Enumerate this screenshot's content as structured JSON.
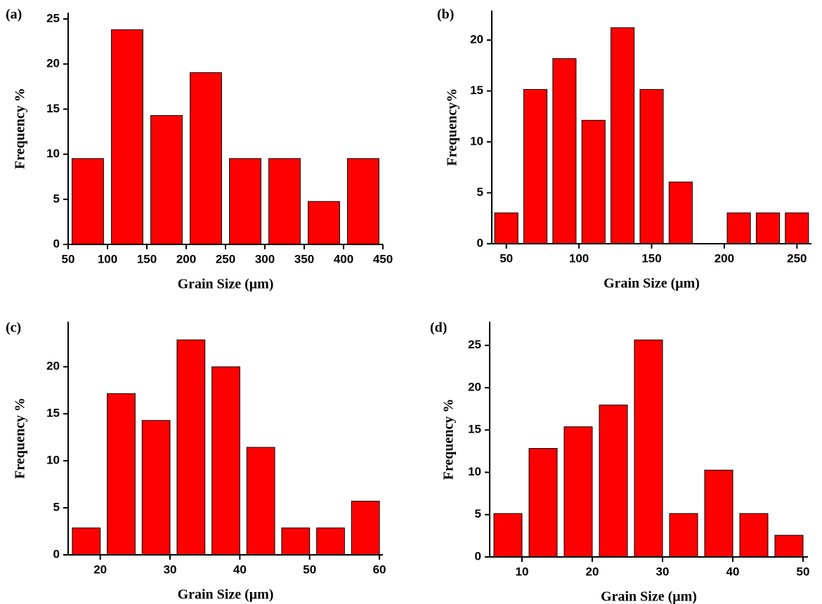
{
  "chart_data": [
    {
      "type": "histogram",
      "panel_label": "(a)",
      "x_label": "Grain Size (μm)",
      "y_label": "Frequency %",
      "bins": [
        50,
        100,
        150,
        200,
        250,
        300,
        350,
        400,
        450
      ],
      "values": [
        9.52,
        23.81,
        14.29,
        19.05,
        9.52,
        9.52,
        4.76,
        9.52
      ],
      "color": "#ff0000",
      "xlim": [
        50,
        450
      ],
      "xticks": [
        50,
        100,
        150,
        200,
        250,
        300,
        350,
        400,
        450
      ],
      "ylim": [
        0,
        25.7
      ],
      "yticks": [
        0,
        5,
        10,
        15,
        20,
        25
      ]
    },
    {
      "type": "histogram",
      "panel_label": "(b)",
      "x_label": "Grain Size (μm)",
      "y_label": "Frequency%",
      "bins": [
        40,
        60,
        80,
        100,
        120,
        140,
        160,
        180,
        200,
        220,
        240,
        260
      ],
      "values": [
        3.03,
        15.15,
        18.18,
        12.12,
        21.21,
        15.15,
        6.06,
        0,
        3.03,
        3.03,
        3.03
      ],
      "color": "#ff0000",
      "xlim": [
        40,
        260
      ],
      "xticks": [
        50,
        100,
        150,
        200,
        250
      ],
      "ylim": [
        0,
        22.9
      ],
      "yticks": [
        0,
        5,
        10,
        15,
        20
      ]
    },
    {
      "type": "histogram",
      "panel_label": "(c)",
      "x_label": "Grain Size (μm)",
      "y_label": "Frequency %",
      "bins": [
        15.5,
        20.5,
        25.5,
        30.5,
        35.5,
        40.5,
        45.5,
        50.5,
        55.5,
        60.5
      ],
      "values": [
        2.86,
        17.14,
        14.29,
        22.86,
        20,
        11.43,
        2.86,
        2.86,
        5.71
      ],
      "color": "#ff0000",
      "xlim": [
        15.4,
        60.5
      ],
      "xticks": [
        20,
        30,
        40,
        50,
        60
      ],
      "ylim": [
        0,
        24.8
      ],
      "yticks": [
        0,
        5,
        10,
        15,
        20
      ]
    },
    {
      "type": "histogram",
      "panel_label": "(d)",
      "x_label": "Grain Size (μm)",
      "y_label": "Frequency %",
      "bins": [
        5.5,
        10.5,
        15.5,
        20.5,
        25.5,
        30.5,
        35.5,
        40.5,
        45.5,
        50.5
      ],
      "values": [
        5.13,
        12.82,
        15.38,
        17.95,
        25.64,
        5.13,
        10.26,
        5.13,
        2.56
      ],
      "color": "#ff0000",
      "xlim": [
        5.4,
        50.7
      ],
      "xticks": [
        10,
        20,
        30,
        40,
        50
      ],
      "ylim": [
        0,
        27.8
      ],
      "yticks": [
        0,
        5,
        10,
        15,
        20,
        25
      ]
    }
  ]
}
